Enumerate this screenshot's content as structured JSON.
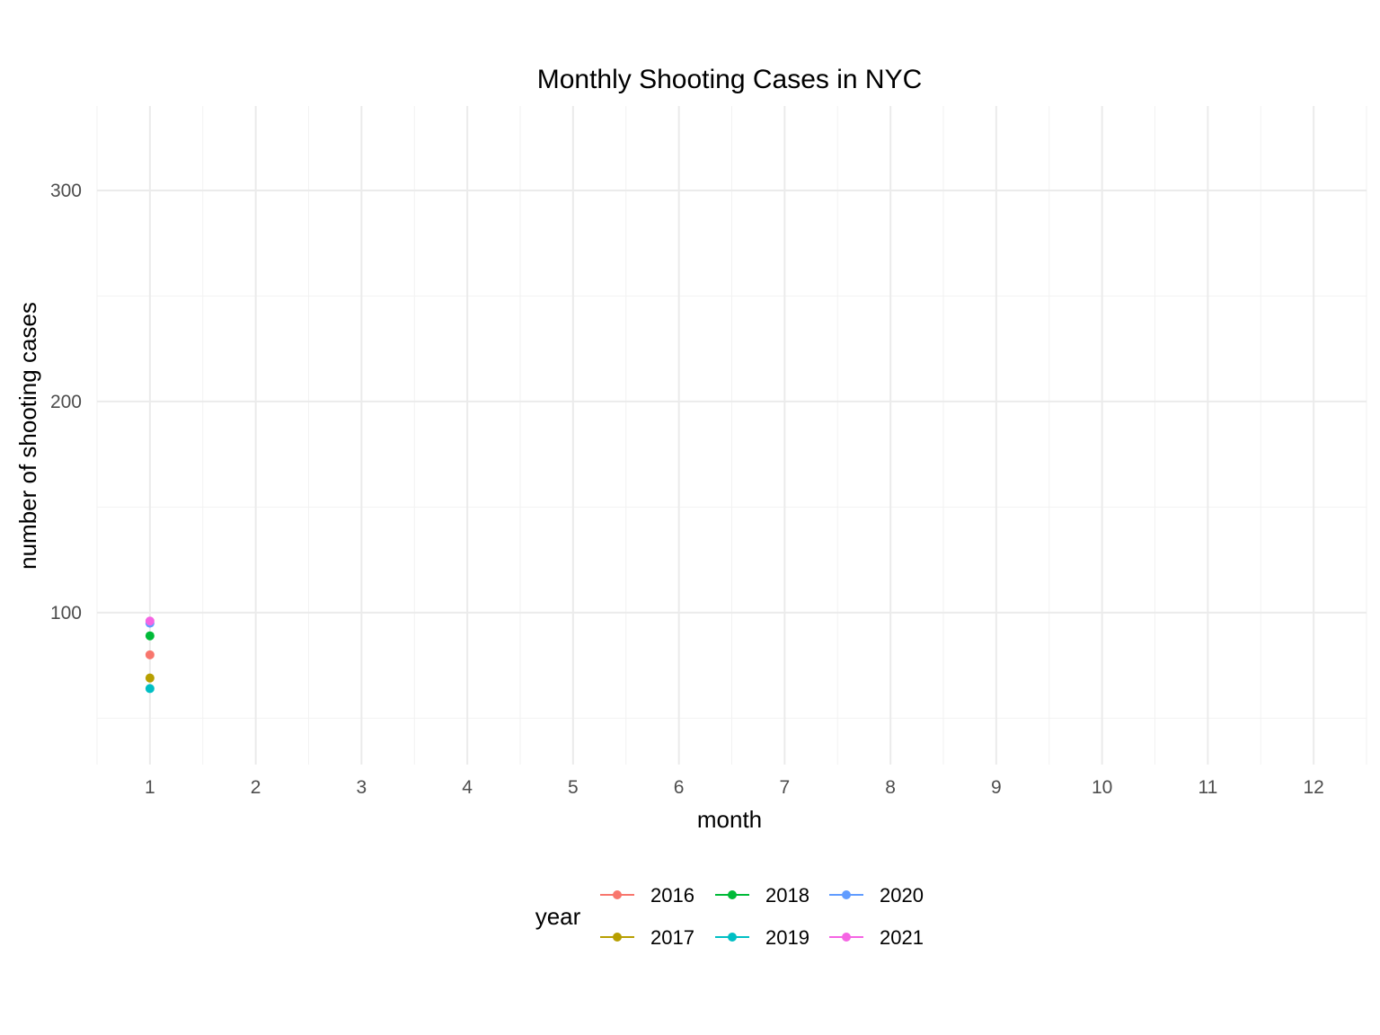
{
  "chart_data": {
    "type": "line",
    "title": "Monthly Shooting Cases in NYC",
    "xlabel": "month",
    "ylabel": "number of shooting cases",
    "x": [
      1
    ],
    "x_ticks": [
      "1",
      "2",
      "3",
      "4",
      "5",
      "6",
      "7",
      "8",
      "9",
      "10",
      "11",
      "12"
    ],
    "xlim": [
      0.5,
      12.5
    ],
    "y_ticks": [
      100,
      200,
      300
    ],
    "ylim": [
      28,
      340
    ],
    "grid": true,
    "legend": {
      "title": "year",
      "position": "bottom"
    },
    "series": [
      {
        "name": "2016",
        "color": "#F8766D",
        "values": [
          80
        ]
      },
      {
        "name": "2017",
        "color": "#B79F00",
        "values": [
          69
        ]
      },
      {
        "name": "2018",
        "color": "#00BA38",
        "values": [
          89
        ]
      },
      {
        "name": "2019",
        "color": "#00BFC4",
        "values": [
          64
        ]
      },
      {
        "name": "2020",
        "color": "#619CFF",
        "values": [
          95
        ]
      },
      {
        "name": "2021",
        "color": "#F564E3",
        "values": [
          96
        ]
      }
    ]
  }
}
